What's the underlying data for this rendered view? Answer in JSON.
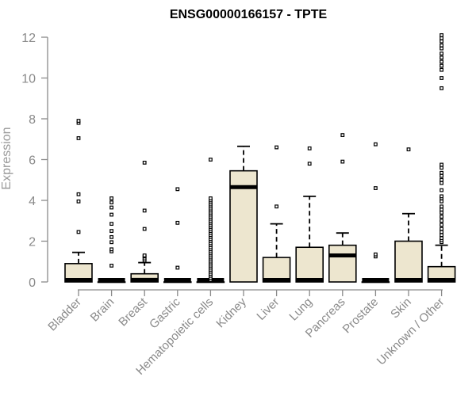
{
  "chart_data": {
    "type": "box",
    "title": "ENSG00000166157 - TPTE",
    "xlabel": "",
    "ylabel": "Expression",
    "ylim": [
      0,
      12
    ],
    "yticks": [
      0,
      2,
      4,
      6,
      8,
      10,
      12
    ],
    "grid": false,
    "legend": "none",
    "colors": {
      "box_fill": "#ede6cf",
      "box_stroke": "#000000",
      "axis": "#8a8a8a",
      "label": "#999999"
    },
    "categories": [
      "Bladder",
      "Brain",
      "Breast",
      "Gastric",
      "Hematopoietic cells",
      "Kidney",
      "Liver",
      "Lung",
      "Pancreas",
      "Prostate",
      "Skin",
      "Unknown / Other"
    ],
    "boxes": [
      {
        "q1": 0,
        "median": 0,
        "q3": 0.9,
        "whisker_low": 0,
        "whisker_high": 1.45,
        "outliers": [
          2.45,
          3.95,
          4.3,
          7.05,
          7.8,
          7.9
        ]
      },
      {
        "q1": 0,
        "median": 0,
        "q3": 0,
        "whisker_low": 0,
        "whisker_high": 0,
        "outliers": [
          0.8,
          1.5,
          1.6,
          1.95,
          2.2,
          2.5,
          2.85,
          3.3,
          3.65,
          3.9,
          4.1
        ]
      },
      {
        "q1": 0,
        "median": 0.1,
        "q3": 0.4,
        "whisker_low": 0,
        "whisker_high": 0.95,
        "outliers": [
          1.05,
          1.15,
          1.25,
          1.3,
          2.6,
          3.5,
          5.85
        ]
      },
      {
        "q1": 0,
        "median": 0,
        "q3": 0,
        "whisker_low": 0,
        "whisker_high": 0,
        "outliers": [
          0.7,
          2.9,
          4.55
        ]
      },
      {
        "q1": 0,
        "median": 0,
        "q3": 0,
        "whisker_low": 0,
        "whisker_high": 0,
        "outliers": [
          0.1,
          0.2,
          0.3,
          0.4,
          0.5,
          0.6,
          0.7,
          0.8,
          0.9,
          1.0,
          1.1,
          1.2,
          1.3,
          1.4,
          1.5,
          1.6,
          1.7,
          1.8,
          1.9,
          2.0,
          2.1,
          2.2,
          2.3,
          2.4,
          2.5,
          2.6,
          2.7,
          2.8,
          2.9,
          3.0,
          3.1,
          3.2,
          3.3,
          3.4,
          3.5,
          3.6,
          3.7,
          3.8,
          3.9,
          4.0,
          4.1,
          6.0
        ]
      },
      {
        "q1": 0,
        "median": 4.65,
        "q3": 5.45,
        "whisker_low": 0,
        "whisker_high": 6.65,
        "outliers": []
      },
      {
        "q1": 0,
        "median": 0,
        "q3": 1.2,
        "whisker_low": 0,
        "whisker_high": 2.85,
        "outliers": [
          3.7,
          6.6
        ]
      },
      {
        "q1": 0,
        "median": 0,
        "q3": 1.7,
        "whisker_low": 0,
        "whisker_high": 4.2,
        "outliers": [
          5.8,
          6.55
        ]
      },
      {
        "q1": 0,
        "median": 1.3,
        "q3": 1.8,
        "whisker_low": 0,
        "whisker_high": 2.4,
        "outliers": [
          5.9,
          7.2
        ]
      },
      {
        "q1": 0,
        "median": 0,
        "q3": 0,
        "whisker_low": 0,
        "whisker_high": 0,
        "outliers": [
          1.25,
          1.35,
          4.6,
          6.75
        ]
      },
      {
        "q1": 0,
        "median": 0,
        "q3": 2.0,
        "whisker_low": 0,
        "whisker_high": 3.35,
        "outliers": [
          6.5
        ]
      },
      {
        "q1": 0,
        "median": 0,
        "q3": 0.75,
        "whisker_low": 0,
        "whisker_high": 1.8,
        "outliers": [
          1.95,
          2.05,
          2.15,
          2.3,
          2.45,
          2.6,
          2.8,
          3.0,
          3.2,
          3.4,
          3.55,
          3.7,
          3.95,
          4.1,
          4.2,
          4.5,
          4.85,
          5.0,
          5.2,
          5.35,
          5.6,
          5.75,
          9.5,
          10.0,
          10.4,
          10.6,
          10.8,
          11.0,
          11.2,
          11.45,
          11.6,
          11.8,
          11.95,
          12.1
        ]
      }
    ]
  }
}
